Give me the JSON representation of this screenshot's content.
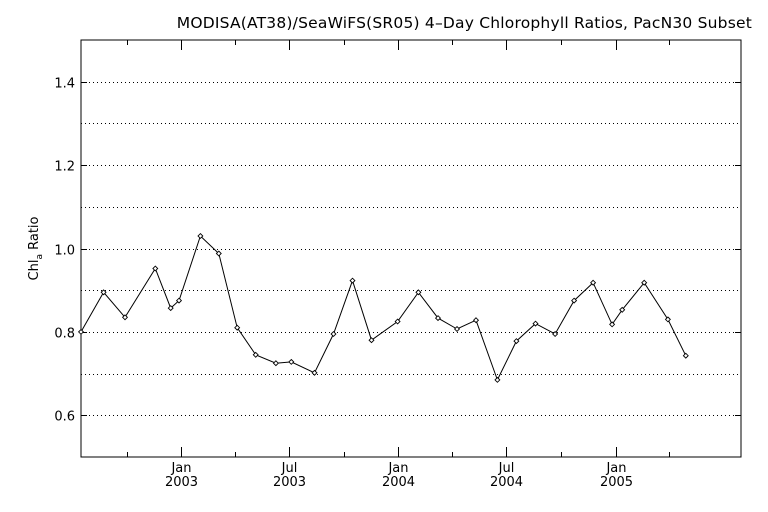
{
  "chart_data": {
    "type": "line",
    "title": "MODISA(AT38)/SeaWiFS(SR05) 4–Day Chlorophyll Ratios, PacN30 Subset",
    "ylabel_main": "Chl",
    "ylabel_sub": "a",
    "ylabel_rest": " Ratio",
    "xlabel": "",
    "ylim": [
      0.5,
      1.5
    ],
    "yticks": [
      {
        "value": 0.6,
        "label": "0.6"
      },
      {
        "value": 0.8,
        "label": "0.8"
      },
      {
        "value": 1.0,
        "label": "1.0"
      },
      {
        "value": 1.2,
        "label": "1.2"
      },
      {
        "value": 1.4,
        "label": "1.4"
      }
    ],
    "ygrid": [
      0.6,
      0.7,
      0.8,
      0.9,
      1.0,
      1.1,
      1.2,
      1.3,
      1.4
    ],
    "xlim": [
      "2002-07-16",
      "2005-07-31"
    ],
    "xticks": [
      {
        "date": "2003-01-01",
        "month": "Jan",
        "year": "2003"
      },
      {
        "date": "2003-07-01",
        "month": "Jul",
        "year": "2003"
      },
      {
        "date": "2004-01-01",
        "month": "Jan",
        "year": "2004"
      },
      {
        "date": "2004-07-01",
        "month": "Jul",
        "year": "2004"
      },
      {
        "date": "2005-01-01",
        "month": "Jan",
        "year": "2005"
      }
    ],
    "xminor_ticks": [
      "2002-10-01",
      "2003-04-01",
      "2003-10-01",
      "2004-04-01",
      "2004-10-01",
      "2005-04-01"
    ],
    "grid": "horizontal dotted",
    "series": [
      {
        "points": [
          {
            "x": "2002-07-16",
            "y": 0.8
          },
          {
            "x": "2002-08-23",
            "y": 0.895
          },
          {
            "x": "2002-09-28",
            "y": 0.835
          },
          {
            "x": "2002-11-18",
            "y": 0.952
          },
          {
            "x": "2002-12-14",
            "y": 0.857
          },
          {
            "x": "2002-12-28",
            "y": 0.875
          },
          {
            "x": "2003-02-02",
            "y": 1.03
          },
          {
            "x": "2003-03-05",
            "y": 0.988
          },
          {
            "x": "2003-04-05",
            "y": 0.81
          },
          {
            "x": "2003-05-06",
            "y": 0.745
          },
          {
            "x": "2003-06-09",
            "y": 0.725
          },
          {
            "x": "2003-07-05",
            "y": 0.728
          },
          {
            "x": "2003-08-13",
            "y": 0.702
          },
          {
            "x": "2003-09-14",
            "y": 0.795
          },
          {
            "x": "2003-10-16",
            "y": 0.923
          },
          {
            "x": "2003-11-17",
            "y": 0.78
          },
          {
            "x": "2003-12-31",
            "y": 0.825
          },
          {
            "x": "2004-02-04",
            "y": 0.895
          },
          {
            "x": "2004-03-08",
            "y": 0.833
          },
          {
            "x": "2004-04-09",
            "y": 0.807
          },
          {
            "x": "2004-05-11",
            "y": 0.828
          },
          {
            "x": "2004-06-16",
            "y": 0.685
          },
          {
            "x": "2004-07-18",
            "y": 0.778
          },
          {
            "x": "2004-08-19",
            "y": 0.82
          },
          {
            "x": "2004-09-21",
            "y": 0.795
          },
          {
            "x": "2004-10-23",
            "y": 0.875
          },
          {
            "x": "2004-11-24",
            "y": 0.918
          },
          {
            "x": "2004-12-26",
            "y": 0.818
          },
          {
            "x": "2005-01-12",
            "y": 0.853
          },
          {
            "x": "2005-02-18",
            "y": 0.918
          },
          {
            "x": "2005-03-30",
            "y": 0.83
          },
          {
            "x": "2005-04-29",
            "y": 0.743
          }
        ]
      }
    ]
  }
}
